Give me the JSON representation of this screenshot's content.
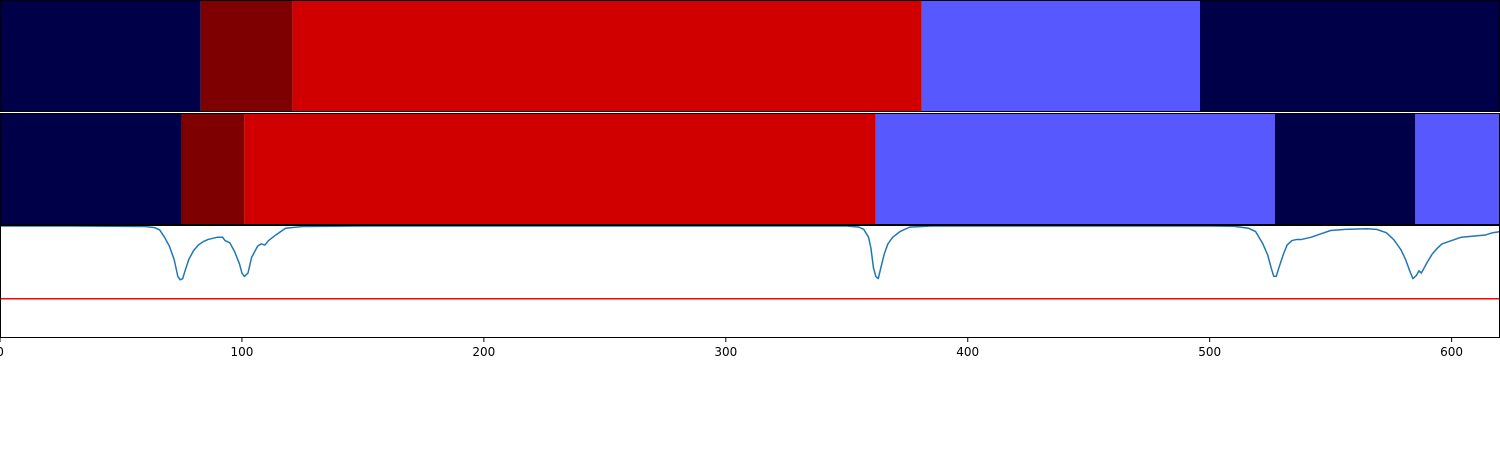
{
  "chart_data": [
    {
      "type": "segments",
      "name": "top-bar",
      "segments": [
        {
          "start": 0,
          "end": 83,
          "color": "#000048"
        },
        {
          "start": 83,
          "end": 121,
          "color": "#7e0000"
        },
        {
          "start": 121,
          "end": 381,
          "color": "#d10000"
        },
        {
          "start": 381,
          "end": 496,
          "color": "#5858ff"
        },
        {
          "start": 496,
          "end": 620,
          "color": "#000048"
        }
      ]
    },
    {
      "type": "segments",
      "name": "middle-bar",
      "segments": [
        {
          "start": 0,
          "end": 75,
          "color": "#000048"
        },
        {
          "start": 75,
          "end": 101,
          "color": "#7e0000"
        },
        {
          "start": 101,
          "end": 362,
          "color": "#d10000"
        },
        {
          "start": 362,
          "end": 527,
          "color": "#5858ff"
        },
        {
          "start": 527,
          "end": 585,
          "color": "#000048"
        },
        {
          "start": 585,
          "end": 620,
          "color": "#5858ff"
        }
      ]
    },
    {
      "type": "line",
      "name": "signal",
      "color": "#1f77b4",
      "threshold": {
        "value": 0.35,
        "color": "#ff0000"
      },
      "ylim": [
        0,
        1
      ],
      "points": [
        [
          0,
          1.0
        ],
        [
          30,
          1.0
        ],
        [
          60,
          0.995
        ],
        [
          64,
          0.985
        ],
        [
          66,
          0.965
        ],
        [
          68,
          0.9
        ],
        [
          70,
          0.82
        ],
        [
          72,
          0.7
        ],
        [
          73.5,
          0.55
        ],
        [
          74.5,
          0.52
        ],
        [
          75.5,
          0.53
        ],
        [
          76.5,
          0.6
        ],
        [
          78,
          0.7
        ],
        [
          80,
          0.78
        ],
        [
          82,
          0.83
        ],
        [
          84,
          0.86
        ],
        [
          86,
          0.88
        ],
        [
          88,
          0.89
        ],
        [
          90,
          0.9
        ],
        [
          92,
          0.9
        ],
        [
          93,
          0.87
        ],
        [
          95,
          0.85
        ],
        [
          97,
          0.77
        ],
        [
          99,
          0.66
        ],
        [
          100,
          0.58
        ],
        [
          101,
          0.55
        ],
        [
          102.5,
          0.58
        ],
        [
          104,
          0.72
        ],
        [
          105.5,
          0.78
        ],
        [
          106.5,
          0.82
        ],
        [
          108,
          0.84
        ],
        [
          109.5,
          0.83
        ],
        [
          111,
          0.87
        ],
        [
          114,
          0.92
        ],
        [
          118,
          0.98
        ],
        [
          125,
          0.995
        ],
        [
          150,
          1.0
        ],
        [
          300,
          1.0
        ],
        [
          350,
          1.0
        ],
        [
          355,
          0.99
        ],
        [
          357,
          0.97
        ],
        [
          359,
          0.9
        ],
        [
          360,
          0.8
        ],
        [
          361,
          0.63
        ],
        [
          362,
          0.55
        ],
        [
          363,
          0.53
        ],
        [
          364,
          0.62
        ],
        [
          365.5,
          0.75
        ],
        [
          367,
          0.84
        ],
        [
          369,
          0.9
        ],
        [
          372,
          0.95
        ],
        [
          376,
          0.99
        ],
        [
          385,
          1.0
        ],
        [
          500,
          1.0
        ],
        [
          510,
          0.998
        ],
        [
          516,
          0.98
        ],
        [
          519,
          0.95
        ],
        [
          522,
          0.84
        ],
        [
          524,
          0.74
        ],
        [
          525.5,
          0.62
        ],
        [
          526.5,
          0.55
        ],
        [
          527.5,
          0.55
        ],
        [
          528.5,
          0.62
        ],
        [
          530.5,
          0.75
        ],
        [
          532,
          0.83
        ],
        [
          534,
          0.87
        ],
        [
          536,
          0.88
        ],
        [
          538,
          0.88
        ],
        [
          542,
          0.9
        ],
        [
          546,
          0.93
        ],
        [
          550,
          0.96
        ],
        [
          556,
          0.97
        ],
        [
          565,
          0.975
        ],
        [
          569,
          0.97
        ],
        [
          573,
          0.94
        ],
        [
          576,
          0.88
        ],
        [
          579,
          0.79
        ],
        [
          581,
          0.7
        ],
        [
          582.5,
          0.61
        ],
        [
          584,
          0.53
        ],
        [
          585.5,
          0.56
        ],
        [
          586.5,
          0.6
        ],
        [
          587.5,
          0.58
        ],
        [
          588.5,
          0.62
        ],
        [
          590,
          0.68
        ],
        [
          592,
          0.75
        ],
        [
          594,
          0.8
        ],
        [
          596,
          0.84
        ],
        [
          600,
          0.87
        ],
        [
          604,
          0.9
        ],
        [
          609,
          0.91
        ],
        [
          614,
          0.92
        ],
        [
          617,
          0.94
        ],
        [
          620,
          0.95
        ]
      ]
    }
  ],
  "axis": {
    "xlim": [
      0,
      620
    ],
    "ticks": [
      "0",
      "100",
      "200",
      "300",
      "400",
      "500",
      "600"
    ]
  }
}
